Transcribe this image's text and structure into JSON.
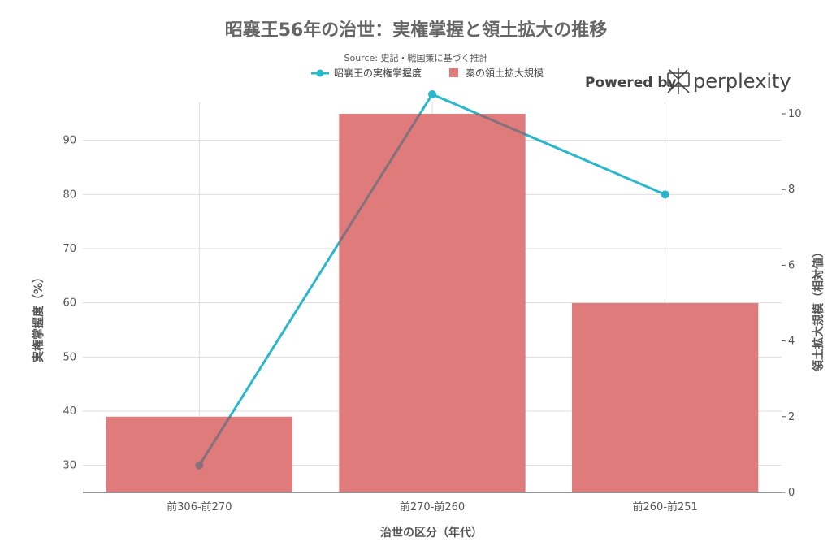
{
  "colors": {
    "bar": "#e07b7b",
    "line": "#2ab7ca",
    "overlap": "#8a6f78",
    "grid": "#dddddd",
    "axis": "#555555"
  },
  "branding": {
    "powered_by": "Powered by",
    "name": "perplexity",
    "icon": "perplexity-logo-icon"
  },
  "chart_data": {
    "type": "bar",
    "title": "昭襄王56年の治世：実権掌握と領土拡大の推移",
    "subtitle": "Source: 史記・戦国策に基づく推計",
    "categories": [
      "前306-前270",
      "前270-前260",
      "前260-前251"
    ],
    "xlabel": "治世の区分（年代）",
    "ylabel": "実権掌握度（%）",
    "y2label": "領土拡大規模（相対値）",
    "ylim": [
      25,
      97
    ],
    "y2lim": [
      0,
      10.3
    ],
    "yticks": [
      "30",
      "40",
      "50",
      "60",
      "70",
      "80",
      "90"
    ],
    "y2ticks": [
      "0",
      "2",
      "4",
      "6",
      "8",
      "10"
    ],
    "legend_position": "top-center",
    "grid": true,
    "series": [
      {
        "name": "昭襄王の実権掌握度",
        "type": "line",
        "axis": "y",
        "values": [
          30,
          98.5,
          80
        ]
      },
      {
        "name": "秦の領土拡大規模",
        "type": "bar",
        "axis": "y2",
        "values": [
          2,
          10,
          5
        ]
      }
    ]
  }
}
